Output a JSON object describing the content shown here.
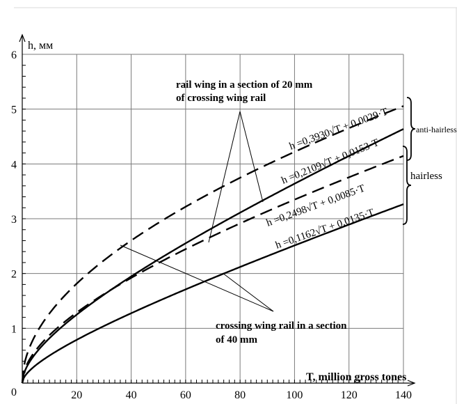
{
  "chart_data": {
    "type": "line",
    "xlabel": "T, million gross tones",
    "ylabel": "h, мм",
    "xlim": [
      0,
      140
    ],
    "ylim": [
      0,
      6
    ],
    "x_ticks": [
      0,
      20,
      40,
      60,
      80,
      100,
      120,
      140
    ],
    "y_ticks": [
      0,
      1,
      2,
      3,
      4,
      5,
      6
    ],
    "grid": true,
    "series": [
      {
        "formula": "h =0,3930√T + 0,0029·T",
        "a": 0.393,
        "b": 0.0029,
        "style": "dashed"
      },
      {
        "formula": "h =0,2109√T + 0,0153·T",
        "a": 0.2109,
        "b": 0.0153,
        "style": "solid"
      },
      {
        "formula": "h =0,2498√T + 0,0085·T",
        "a": 0.2498,
        "b": 0.0085,
        "style": "dashed"
      },
      {
        "formula": "h =0,1162√T + 0,0135·T",
        "a": 0.1162,
        "b": 0.0135,
        "style": "solid"
      }
    ],
    "annotations": {
      "dashed_group": [
        "rail wing in a section of 20 mm",
        "of crossing wing rail"
      ],
      "solid_group": [
        "crossing wing rail in a section",
        "of 40 mm"
      ]
    },
    "brackets": {
      "upper": "anti-hairless",
      "lower": "hairless"
    }
  }
}
